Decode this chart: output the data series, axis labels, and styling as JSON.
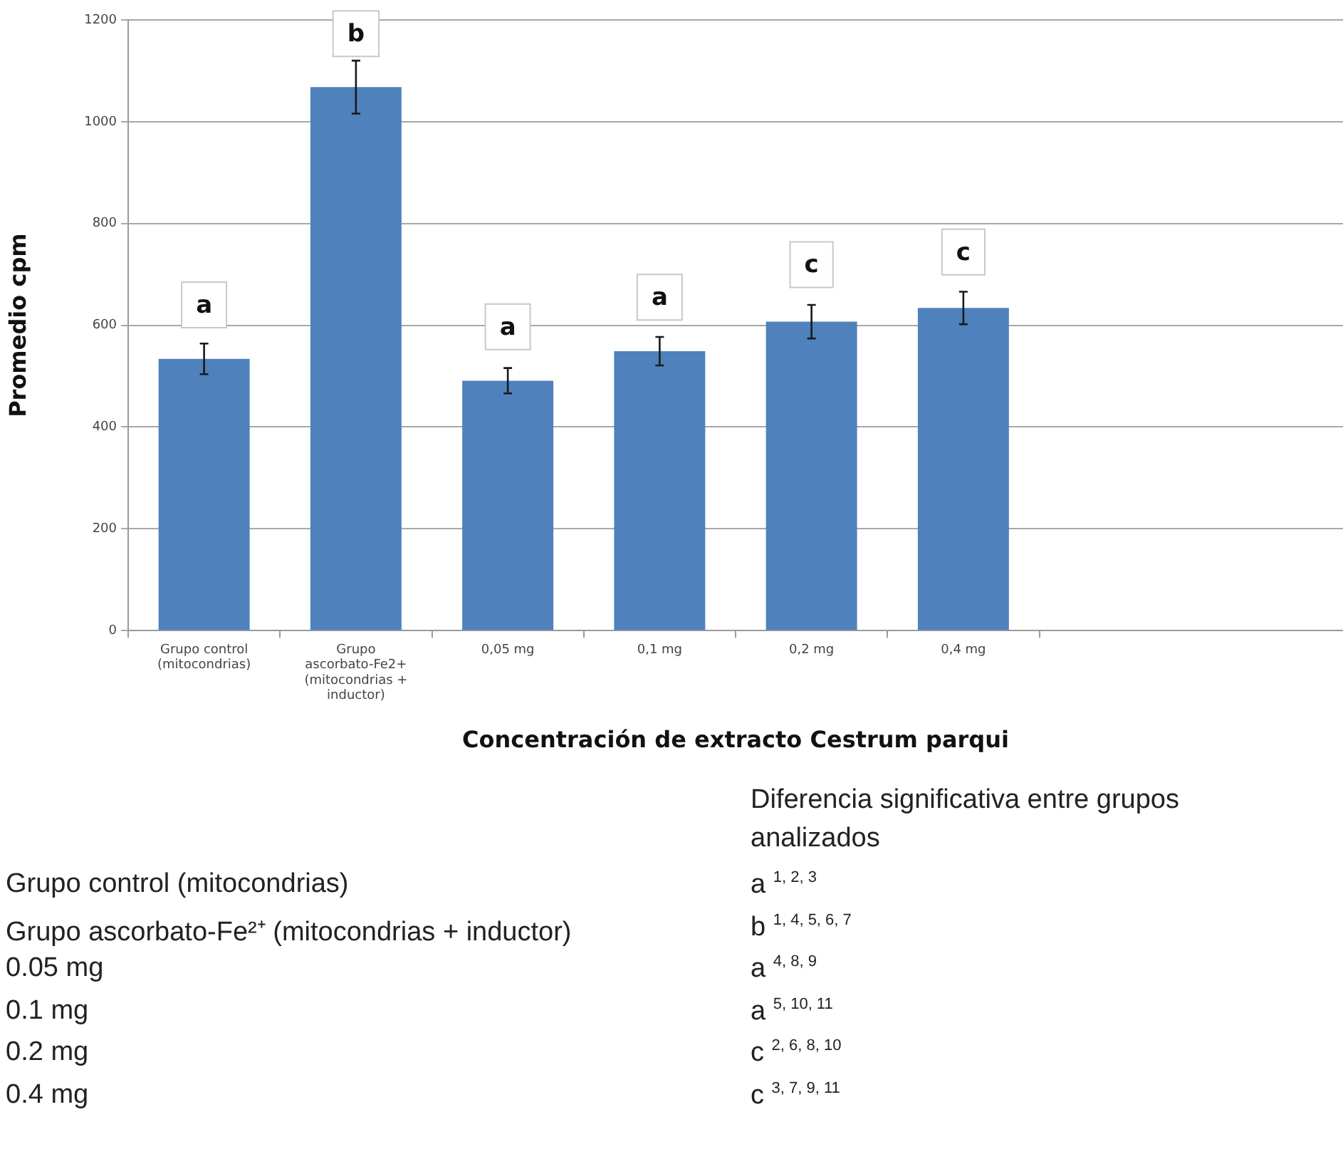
{
  "chart_data": {
    "type": "bar",
    "xlabel": "Concentración de extracto Cestrum parqui",
    "ylabel": "Promedio cpm",
    "categories": [
      "Grupo control (mitocondrias)",
      "Grupo ascorbato-Fe2+ (mitocondrias + inductor)",
      "0,05 mg",
      "0,1 mg",
      "0,2 mg",
      "0,4 mg",
      null,
      null
    ],
    "values": [
      534,
      1068,
      491,
      549,
      607,
      634,
      null,
      null
    ],
    "errors": [
      30,
      52,
      25,
      28,
      33,
      32,
      null,
      null
    ],
    "color": "#4f81bd",
    "ylim": [
      0,
      1200
    ],
    "yticks": [
      0,
      200,
      400,
      600,
      800,
      1000,
      1200
    ],
    "grid": "y",
    "legend": false,
    "annotations": [
      {
        "text": "a",
        "x": "Grupo control (mitocondrias)",
        "y": 640
      },
      {
        "text": "b",
        "x": "Grupo ascorbato-Fe2+ (mitocondrias + inductor)",
        "y": 1173
      },
      {
        "text": "a",
        "x": "0,05 mg",
        "y": 597
      },
      {
        "text": "a",
        "x": "0,1 mg",
        "y": 655
      },
      {
        "text": "c",
        "x": "0,2 mg",
        "y": 719
      },
      {
        "text": "c",
        "x": "0,4 mg",
        "y": 744
      },
      "Diferencia significativa entre grupos analizados",
      "Grupo control (mitocondrias)",
      "a $^{1, 2, 3}$",
      "Grupo ascorbato-Fe²⁺ (mitocondrias + inductor)",
      "b $^{1, 4, 5, 6, 7}$",
      "0.05 mg",
      "a $^{4, 8, 9}$",
      "0.1 mg",
      "a $^{5, 10, 11}$",
      "0.2 mg",
      "c $^{2, 6, 8, 10}$",
      "0.4 mg",
      "c $^{3, 7, 9, 11}$"
    ]
  }
}
